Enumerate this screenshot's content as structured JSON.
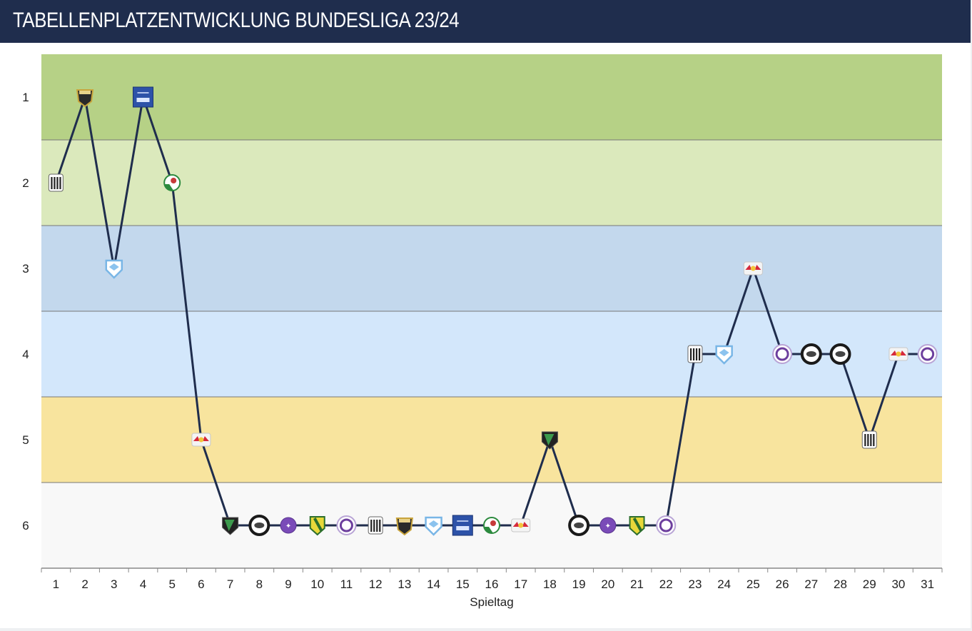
{
  "title": "TABELLENPLATZENTWICKLUNG BUNDESLIGA 23/24",
  "colors": {
    "header_bg": "#1f2d4d",
    "line": "#1f2d4d",
    "band_1": "#b6d186",
    "band_2": "#dbe9bc",
    "band_3": "#c3d8ed",
    "band_4": "#d3e7fb",
    "band_5": "#f8e49e",
    "band_6": "#f8f8f8"
  },
  "chart_data": {
    "type": "line",
    "xlabel": "Spieltag",
    "ylabel": "",
    "x": [
      1,
      2,
      3,
      4,
      5,
      6,
      7,
      8,
      9,
      10,
      11,
      12,
      13,
      14,
      15,
      16,
      17,
      18,
      19,
      20,
      21,
      22,
      23,
      24,
      25,
      26,
      27,
      28,
      29,
      30,
      31
    ],
    "xlim": [
      1,
      31
    ],
    "ylim": [
      1,
      6
    ],
    "y_reversed": true,
    "yticks": [
      1,
      2,
      3,
      4,
      5,
      6
    ],
    "bands": [
      1,
      2,
      3,
      4,
      5,
      6
    ],
    "series": [
      {
        "values": [
          2,
          1,
          3,
          1,
          2,
          5,
          6,
          6,
          6,
          6,
          6,
          6,
          6,
          6,
          6,
          6,
          6,
          5,
          6,
          6,
          6,
          6,
          4,
          4,
          3,
          4,
          4,
          4,
          5,
          4,
          4
        ],
        "markers": [
          "stripes-crest",
          "gold-crest",
          "sky-crest",
          "blue-square-crest",
          "green-white-crest",
          "red-bull-crest",
          "black-green-crest",
          "black-ring-crest",
          "violet-crest",
          "yellow-green-crest",
          "violet-ring-crest",
          "stripes-crest",
          "gold-crest",
          "sky-crest",
          "blue-square-crest",
          "green-white-crest",
          "red-bull-crest",
          "black-green-crest",
          "black-ring-crest",
          "violet-crest",
          "yellow-green-crest",
          "violet-ring-crest",
          "stripes-crest",
          "sky-crest",
          "red-bull-crest",
          "violet-ring-crest",
          "black-ring-crest",
          "black-ring-crest",
          "stripes-crest",
          "red-bull-crest",
          "violet-ring-crest"
        ]
      }
    ]
  }
}
